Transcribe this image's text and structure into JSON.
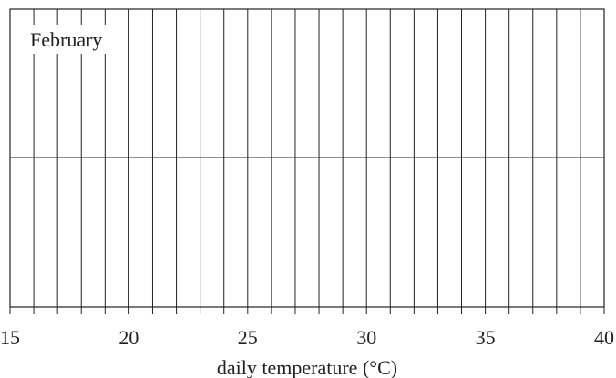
{
  "panel_label": "February",
  "axis": {
    "min": 15,
    "max": 40,
    "step": 1,
    "labeled_ticks": [
      15,
      20,
      25,
      30,
      35,
      40
    ],
    "label": "daily temperature (°C)"
  },
  "grid": {
    "vertical_lines_every": 1,
    "horizontal_divider": true
  },
  "colors": {
    "line": "#222222",
    "background": "#ffffff"
  }
}
